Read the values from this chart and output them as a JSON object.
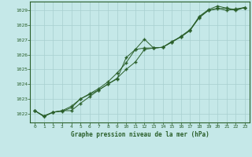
{
  "title": "Graphe pression niveau de la mer (hPa)",
  "bg_color": "#c5e8e8",
  "grid_color": "#a8cfcf",
  "line_color": "#2a5f2a",
  "border_color": "#2a5f2a",
  "xlim": [
    -0.5,
    23.5
  ],
  "ylim": [
    1021.4,
    1029.6
  ],
  "yticks": [
    1022,
    1023,
    1024,
    1025,
    1026,
    1027,
    1028,
    1029
  ],
  "xticks": [
    0,
    1,
    2,
    3,
    4,
    5,
    6,
    7,
    8,
    9,
    10,
    11,
    12,
    13,
    14,
    15,
    16,
    17,
    18,
    19,
    20,
    21,
    22,
    23
  ],
  "hours": [
    0,
    1,
    2,
    3,
    4,
    5,
    6,
    7,
    8,
    9,
    10,
    11,
    12,
    13,
    14,
    15,
    16,
    17,
    18,
    19,
    20,
    21,
    22,
    23
  ],
  "line1": [
    1022.2,
    1021.8,
    1022.1,
    1022.2,
    1022.5,
    1023.0,
    1023.3,
    1023.6,
    1024.0,
    1024.4,
    1025.0,
    1025.5,
    1026.35,
    1026.45,
    1026.5,
    1026.9,
    1027.2,
    1027.65,
    1028.5,
    1029.0,
    1029.15,
    1029.0,
    1029.1,
    1029.2
  ],
  "line2": [
    1022.2,
    1021.85,
    1022.1,
    1022.15,
    1022.4,
    1023.0,
    1023.35,
    1023.7,
    1024.15,
    1024.75,
    1025.45,
    1026.35,
    1026.45,
    1026.45,
    1026.5,
    1026.85,
    1027.25,
    1027.7,
    1028.55,
    1029.0,
    1029.1,
    1029.15,
    1029.05,
    1029.2
  ],
  "line3": [
    1022.2,
    1021.8,
    1022.1,
    1022.2,
    1022.2,
    1022.7,
    1023.15,
    1023.6,
    1024.0,
    1024.35,
    1025.8,
    1026.35,
    1027.05,
    1026.45,
    1026.5,
    1026.85,
    1027.2,
    1027.65,
    1028.6,
    1029.05,
    1029.3,
    1029.15,
    1029.0,
    1029.2
  ]
}
